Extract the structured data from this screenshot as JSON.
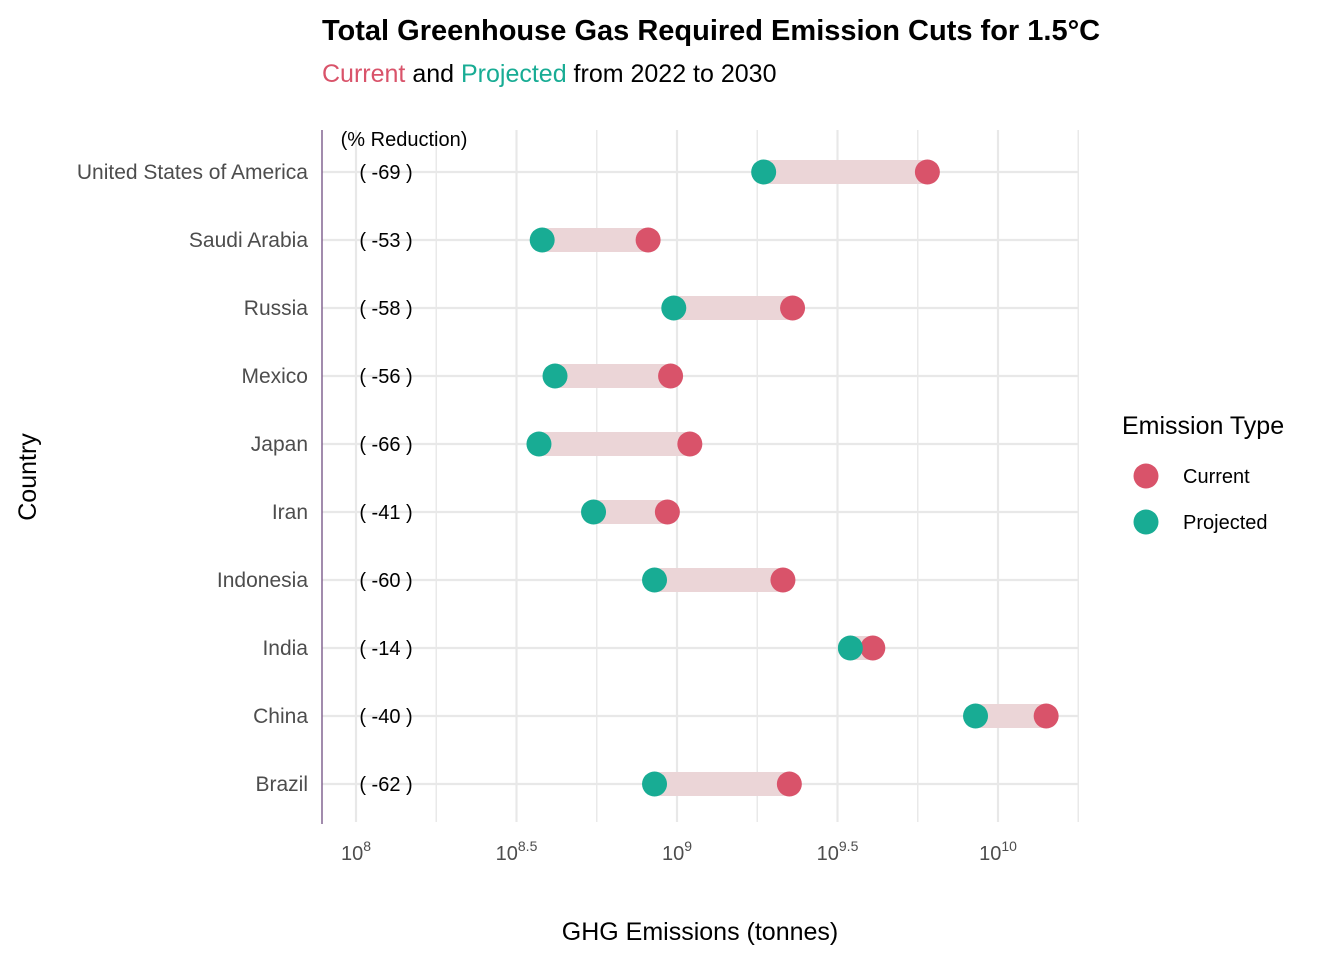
{
  "chart_data": {
    "type": "dumbbell",
    "title": "Total Greenhouse Gas Required Emission Cuts for 1.5°C",
    "subtitle": {
      "part1": "Current",
      "part2": " and ",
      "part3": "Projected",
      "part4": " from 2022 to 2030"
    },
    "xlabel": "GHG Emissions (tonnes)",
    "ylabel": "Country",
    "x_scale": "log10",
    "xlim_log10": [
      7.9,
      10.25
    ],
    "x_ticks": [
      {
        "base": "10",
        "exp": "8",
        "log10": 8
      },
      {
        "base": "10",
        "exp": "8.5",
        "log10": 8.5
      },
      {
        "base": "10",
        "exp": "9",
        "log10": 9
      },
      {
        "base": "10",
        "exp": "9.5",
        "log10": 9.5
      },
      {
        "base": "10",
        "exp": "10",
        "log10": 10
      }
    ],
    "pct_header": "(% Reduction)",
    "legend": {
      "title": "Emission Type",
      "items": [
        {
          "label": "Current",
          "color": "#d9536a"
        },
        {
          "label": "Projected",
          "color": "#18ac94"
        }
      ]
    },
    "colors": {
      "current": "#d9536a",
      "projected": "#18ac94",
      "segment": "#ebd5d7",
      "grid": "#e8e8e8",
      "vline": "#7b5a8a"
    },
    "categories": [
      "United States of America",
      "Saudi Arabia",
      "Russia",
      "Mexico",
      "Japan",
      "Iran",
      "Indonesia",
      "India",
      "China",
      "Brazil"
    ],
    "series": [
      {
        "name": "Current",
        "values_log10": [
          9.78,
          8.91,
          9.36,
          8.98,
          9.04,
          8.97,
          9.33,
          9.61,
          10.15,
          9.35
        ]
      },
      {
        "name": "Projected",
        "values_log10": [
          9.27,
          8.58,
          8.99,
          8.62,
          8.57,
          8.74,
          8.93,
          9.54,
          9.93,
          8.93
        ]
      }
    ],
    "reductions": [
      "( -69 )",
      "( -53 )",
      "( -58 )",
      "( -56 )",
      "( -66 )",
      "( -41 )",
      "( -60 )",
      "( -14 )",
      "( -40 )",
      "( -62 )"
    ]
  }
}
